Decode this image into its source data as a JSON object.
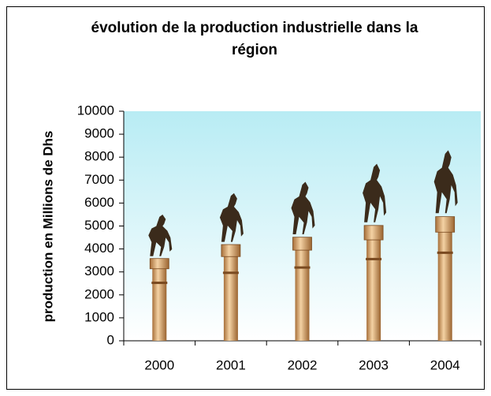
{
  "chart_data": {
    "type": "bar",
    "title": "évolution de la production industrielle dans la région",
    "y_label": "production en Millions de Dhs",
    "categories": [
      "2000",
      "2001",
      "2002",
      "2003",
      "2004"
    ],
    "values": [
      5600,
      6550,
      7050,
      7850,
      8450
    ],
    "color": "#d9a56b",
    "ylim": [
      0,
      10000
    ],
    "yticks": [
      0,
      1000,
      2000,
      3000,
      4000,
      5000,
      6000,
      7000,
      8000,
      9000,
      10000
    ],
    "grid": false
  }
}
